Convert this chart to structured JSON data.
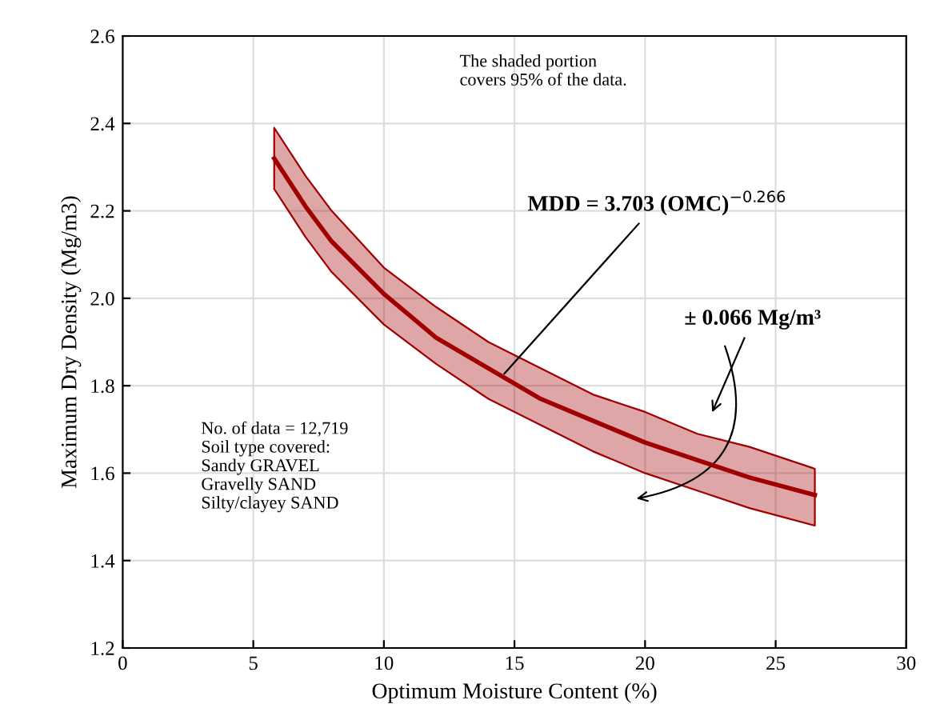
{
  "chart_data": {
    "type": "line",
    "xlabel": "Optimum Moisture Content (%)",
    "ylabel": "Maximum Dry Density (Mg/m3)",
    "x": [
      5.8,
      7,
      8,
      10,
      12,
      14,
      16,
      18,
      20,
      22,
      24,
      26.5
    ],
    "series": [
      {
        "color": "#a00000",
        "values": [
          2.32,
          2.21,
          2.13,
          2.01,
          1.91,
          1.84,
          1.77,
          1.72,
          1.67,
          1.63,
          1.59,
          1.55
        ],
        "lower": [
          2.25,
          2.14,
          2.06,
          1.94,
          1.85,
          1.77,
          1.71,
          1.65,
          1.6,
          1.56,
          1.52,
          1.48
        ],
        "upper": [
          2.39,
          2.28,
          2.2,
          2.07,
          1.98,
          1.9,
          1.84,
          1.78,
          1.74,
          1.69,
          1.66,
          1.61
        ]
      }
    ],
    "xlim": [
      0,
      30
    ],
    "xticks": [
      0,
      5,
      10,
      15,
      20,
      25,
      30
    ],
    "ylim": [
      1.2,
      2.6
    ],
    "yticks": [
      1.2,
      1.4,
      1.6,
      1.8,
      {
        "value": 2,
        "label": "2.0"
      },
      2.2,
      2.4,
      2.6
    ],
    "grid": true,
    "marker": "none",
    "line_style": "solid",
    "annotations": [
      "The shaded portion\ncovers 95% of the data.",
      {
        "text": "MDD = 3.703 (OMC)$^{−0.266}$",
        "x": 14.5,
        "y": 1.82
      },
      "± 0.066 Mg/m³",
      "No. of data = 12,719\nSoil type covered:\nSandy GRAVEL\nGravelly SAND\nSilty/clayey SAND"
    ]
  }
}
